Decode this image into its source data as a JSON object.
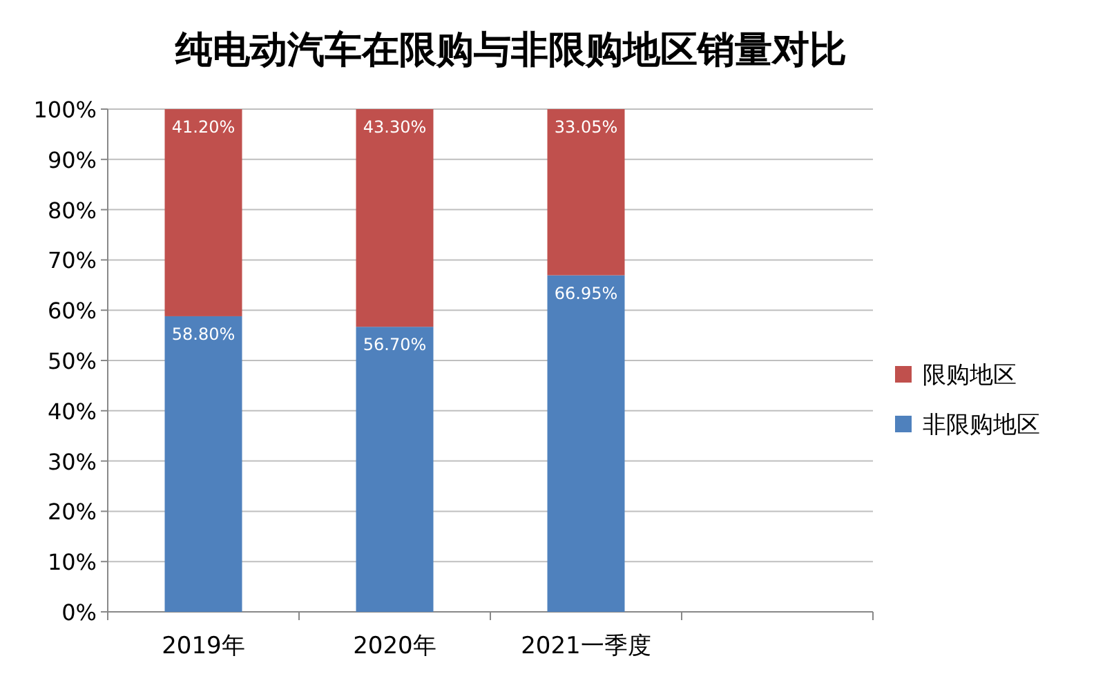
{
  "chart_data": {
    "type": "bar",
    "stacked": true,
    "title": "纯电动汽车在限购与非限购地区销量对比",
    "categories": [
      "2019年",
      "2020年",
      "2021一季度",
      null
    ],
    "series": [
      {
        "name": "非限购地区",
        "color": "#4f81bd",
        "values": [
          58.8,
          56.7,
          66.95,
          null
        ],
        "value_labels": [
          "58.80%",
          "56.70%",
          "66.95%",
          null
        ]
      },
      {
        "name": "限购地区",
        "color": "#c0504d",
        "values": [
          41.2,
          43.3,
          33.05,
          null
        ],
        "value_labels": [
          "41.20%",
          "43.30%",
          "33.05%",
          null
        ]
      }
    ],
    "ylim": [
      0,
      100
    ],
    "yticks": [
      {
        "value": 0,
        "label": "0%"
      },
      {
        "value": 10,
        "label": "10%"
      },
      {
        "value": 20,
        "label": "20%"
      },
      {
        "value": 30,
        "label": "30%"
      },
      {
        "value": 40,
        "label": "40%"
      },
      {
        "value": 50,
        "label": "50%"
      },
      {
        "value": 60,
        "label": "60%"
      },
      {
        "value": 70,
        "label": "70%"
      },
      {
        "value": 80,
        "label": "80%"
      },
      {
        "value": 90,
        "label": "90%"
      },
      {
        "value": 100,
        "label": "100%"
      }
    ],
    "grid": "y",
    "legend": "right"
  }
}
